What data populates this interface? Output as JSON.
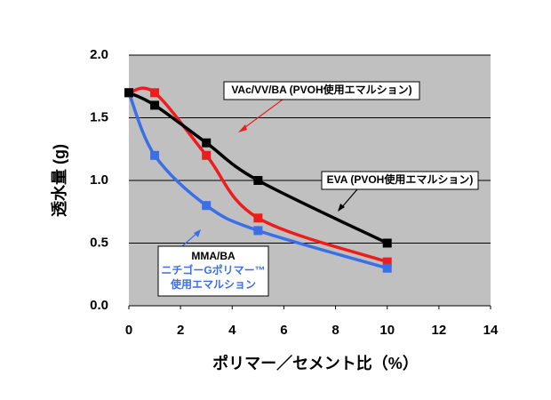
{
  "chart_data": {
    "type": "line",
    "y_label": "透水量 (g)",
    "x_label": "ポリマー／セメント比（%）",
    "xlim": [
      0,
      14
    ],
    "xticks": [
      0,
      2,
      4,
      6,
      8,
      10,
      12,
      14
    ],
    "ylim": [
      0,
      2
    ],
    "yticks": [
      {
        "value": 0,
        "label": "0.0"
      },
      0.5,
      {
        "value": 1,
        "label": "1.0"
      },
      1.5,
      {
        "value": 2,
        "label": "2.0"
      }
    ],
    "grid": true,
    "series": [
      {
        "name": "VAc/VV/BA (PVOH使用エマルション)",
        "color": "#ee1c1c",
        "x": [
          0,
          1,
          3,
          5,
          10
        ],
        "values": [
          1.7,
          1.7,
          1.2,
          0.7,
          0.35
        ]
      },
      {
        "name": "MMA/BA",
        "label_lines": [
          "ニチゴーGポリマー™",
          "使用エマルション"
        ],
        "color": "#3a6fe8",
        "x": [
          0,
          1,
          3,
          5,
          10
        ],
        "values": [
          1.7,
          1.2,
          0.8,
          0.6,
          0.3
        ]
      },
      {
        "name": "EVA (PVOH使用エマルション)",
        "color": "#000000",
        "x": [
          0,
          1,
          3,
          5,
          10
        ],
        "values": [
          1.7,
          1.6,
          1.3,
          1.0,
          0.5
        ]
      }
    ]
  }
}
